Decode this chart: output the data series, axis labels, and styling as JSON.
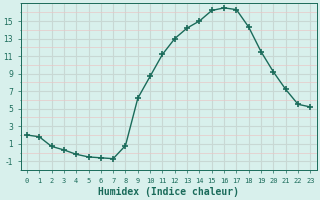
{
  "x": [
    0,
    1,
    2,
    3,
    4,
    5,
    6,
    7,
    8,
    9,
    10,
    11,
    12,
    13,
    14,
    15,
    16,
    17,
    18,
    19,
    20,
    21,
    22,
    23
  ],
  "y": [
    2.0,
    1.8,
    0.7,
    0.3,
    -0.2,
    -0.5,
    -0.6,
    -0.7,
    0.8,
    6.2,
    8.7,
    11.2,
    13.0,
    14.2,
    15.0,
    16.2,
    16.5,
    16.3,
    14.3,
    11.5,
    9.2,
    7.2,
    5.5,
    5.2
  ],
  "line_color": "#1a6b5a",
  "marker": "+",
  "markersize": 4,
  "markeredgewidth": 1.2,
  "linewidth": 1.0,
  "xlabel": "Humidex (Indice chaleur)",
  "xlabel_fontsize": 7,
  "bg_color": "#d8f0ec",
  "major_grid_color": "#c8d8d4",
  "minor_grid_color": "#e8c8c8",
  "tick_color": "#1a6b5a",
  "label_color": "#1a6b5a",
  "xlim": [
    -0.5,
    23.5
  ],
  "ylim": [
    -2.0,
    17.0
  ],
  "yticks": [
    -1,
    1,
    3,
    5,
    7,
    9,
    11,
    13,
    15
  ],
  "xtick_labels": [
    "0",
    "1",
    "2",
    "3",
    "4",
    "5",
    "6",
    "7",
    "8",
    "9",
    "10",
    "11",
    "12",
    "13",
    "14",
    "15",
    "16",
    "17",
    "18",
    "19",
    "20",
    "21",
    "22",
    "23"
  ]
}
